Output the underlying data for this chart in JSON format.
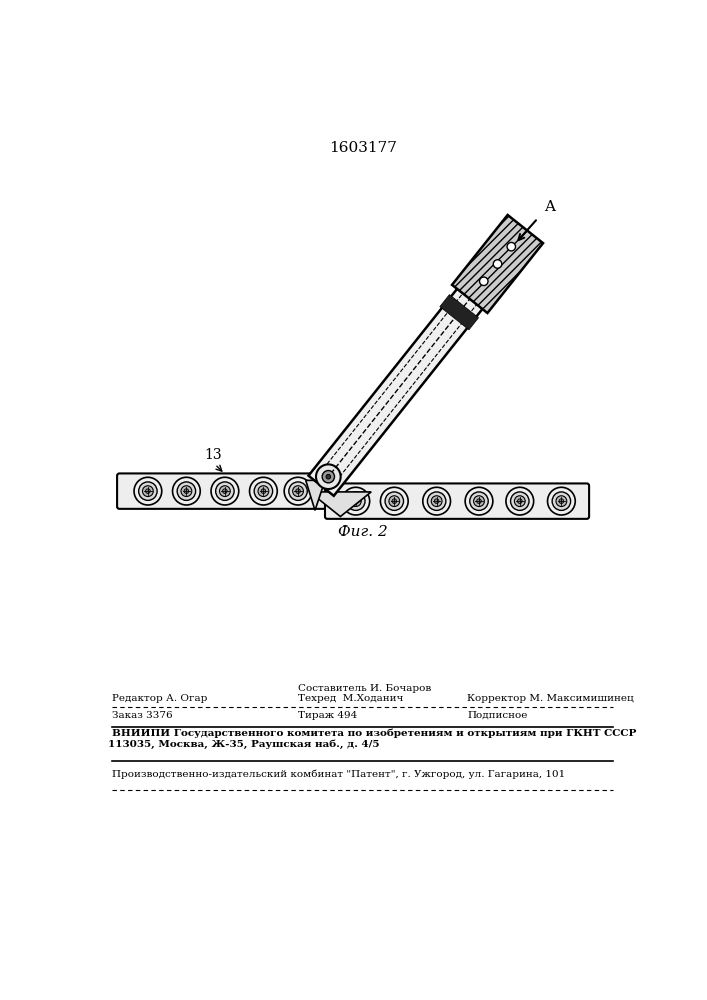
{
  "patent_number": "1603177",
  "fig_label": "Фиг. 2",
  "label_13": "13",
  "label_A": "A",
  "editor_line": "Редактор А. Огар",
  "composer_line1": "Составитель И. Бочаров",
  "composer_line2": "Техред  М.Ходанич",
  "corrector_line": "Корректор М. Максимишинец",
  "order_line": "Заказ 3376",
  "tirazh_line": "Тираж 494",
  "podpisnoe_line": "Подписное",
  "vniipи_line": "ВНИИПИ Государственного комитета по изобретениям и открытиям при ГКНТ СССР",
  "address_line": "113035, Москва, Ж-35, Раушская наб., д. 4/5",
  "factory_line": "Производственно-издательский комбинат \"Патент\", г. Ужгород, ул. Гагарина, 101",
  "bg_color": "#ffffff",
  "line_color": "#000000",
  "text_color": "#000000"
}
